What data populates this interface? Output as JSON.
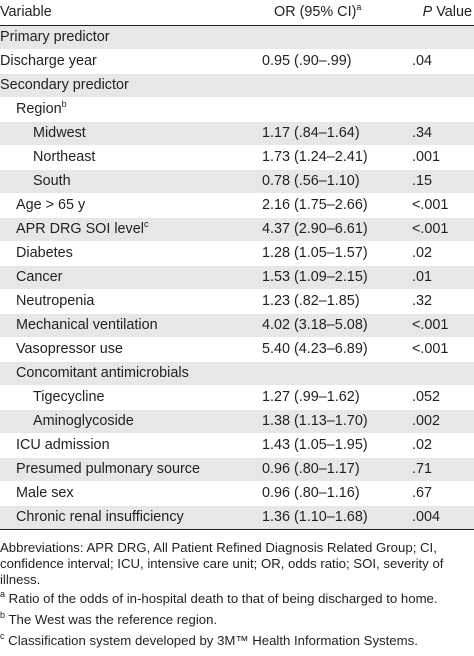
{
  "header": {
    "variable": "Variable",
    "or_label": "OR (95% CI)",
    "or_sup": "a",
    "p_italic": "P",
    "p_rest": " Value"
  },
  "rows": [
    {
      "label": "Primary predictor",
      "sup": "",
      "or": "",
      "p": "",
      "level": 0,
      "shade": true
    },
    {
      "label": "Discharge year",
      "sup": "",
      "or": "0.95 (.90–.99)",
      "p": ".04",
      "level": 0,
      "shade": false
    },
    {
      "label": "Secondary predictor",
      "sup": "",
      "or": "",
      "p": "",
      "level": 0,
      "shade": true
    },
    {
      "label": "Region",
      "sup": "b",
      "or": "",
      "p": "",
      "level": 1,
      "shade": false
    },
    {
      "label": "Midwest",
      "sup": "",
      "or": "1.17 (.84–1.64)",
      "p": ".34",
      "level": 2,
      "shade": true
    },
    {
      "label": "Northeast",
      "sup": "",
      "or": "1.73 (1.24–2.41)",
      "p": ".001",
      "level": 2,
      "shade": false
    },
    {
      "label": "South",
      "sup": "",
      "or": "0.78 (.56–1.10)",
      "p": ".15",
      "level": 2,
      "shade": true
    },
    {
      "label": "Age > 65 y",
      "sup": "",
      "or": "2.16 (1.75–2.66)",
      "p": "<.001",
      "level": 1,
      "shade": false
    },
    {
      "label": "APR DRG SOI level",
      "sup": "c",
      "or": "4.37 (2.90–6.61)",
      "p": "<.001",
      "level": 1,
      "shade": true
    },
    {
      "label": "Diabetes",
      "sup": "",
      "or": "1.28 (1.05–1.57)",
      "p": ".02",
      "level": 1,
      "shade": false
    },
    {
      "label": "Cancer",
      "sup": "",
      "or": "1.53 (1.09–2.15)",
      "p": ".01",
      "level": 1,
      "shade": true
    },
    {
      "label": "Neutropenia",
      "sup": "",
      "or": "1.23 (.82–1.85)",
      "p": ".32",
      "level": 1,
      "shade": false
    },
    {
      "label": "Mechanical ventilation",
      "sup": "",
      "or": "4.02 (3.18–5.08)",
      "p": "<.001",
      "level": 1,
      "shade": true
    },
    {
      "label": "Vasopressor use",
      "sup": "",
      "or": "5.40 (4.23–6.89)",
      "p": "<.001",
      "level": 1,
      "shade": false
    },
    {
      "label": "Concomitant antimicrobials",
      "sup": "",
      "or": "",
      "p": "",
      "level": 1,
      "shade": true
    },
    {
      "label": "Tigecycline",
      "sup": "",
      "or": "1.27 (.99–1.62)",
      "p": ".052",
      "level": 2,
      "shade": false
    },
    {
      "label": "Aminoglycoside",
      "sup": "",
      "or": "1.38 (1.13–1.70)",
      "p": ".002",
      "level": 2,
      "shade": true
    },
    {
      "label": "ICU admission",
      "sup": "",
      "or": "1.43 (1.05–1.95)",
      "p": ".02",
      "level": 1,
      "shade": false
    },
    {
      "label": "Presumed pulmonary source",
      "sup": "",
      "or": "0.96 (.80–1.17)",
      "p": ".71",
      "level": 1,
      "shade": true
    },
    {
      "label": "Male sex",
      "sup": "",
      "or": "0.96 (.80–1.16)",
      "p": ".67",
      "level": 1,
      "shade": false
    },
    {
      "label": "Chronic renal insufficiency",
      "sup": "",
      "or": "1.36 (1.10–1.68)",
      "p": ".004",
      "level": 1,
      "shade": true
    }
  ],
  "notes": {
    "abbreviations": "Abbreviations: APR DRG, All Patient Refined Diagnosis Related Group; CI, confidence interval; ICU, intensive care unit; OR, odds ratio; SOI, severity of illness.",
    "footnotes": [
      {
        "mark": "a",
        "text": " Ratio of the odds of in-hospital death to that of being discharged to home."
      },
      {
        "mark": "b",
        "text": " The West was the reference region."
      },
      {
        "mark": "c",
        "text": " Classification system developed by 3M™ Health Information Systems."
      }
    ]
  }
}
